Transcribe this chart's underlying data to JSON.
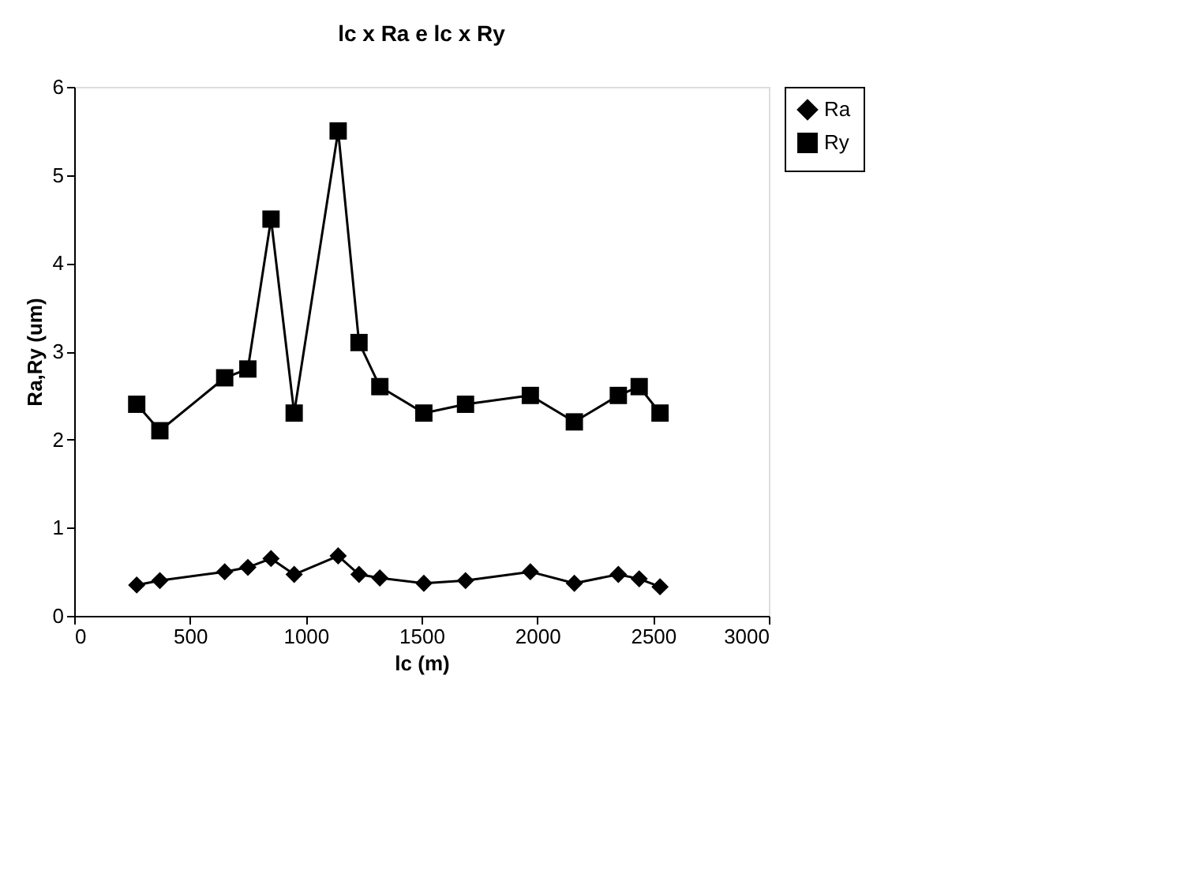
{
  "chart_data": {
    "type": "line",
    "title": "lc x Ra  e  lc x Ry",
    "xlabel": "lc (m)",
    "ylabel": "Ra,Ry (um)",
    "xlim": [
      0,
      3000
    ],
    "xticks": [
      0,
      500,
      1000,
      1500,
      2000,
      2500,
      3000
    ],
    "ylim": [
      0,
      6
    ],
    "yticks": [
      0,
      1,
      2,
      3,
      4,
      5,
      6
    ],
    "grid": false,
    "legend": "right",
    "line_style": "solid",
    "series": [
      {
        "name": "Ra",
        "color": "#000000",
        "marker": "diamond",
        "x": [
          270,
          370,
          650,
          750,
          850,
          950,
          1140,
          1230,
          1320,
          1510,
          1690,
          1970,
          2160,
          2350,
          2440,
          2530
        ],
        "values": [
          0.35,
          0.4,
          0.5,
          0.55,
          0.65,
          0.47,
          0.68,
          0.47,
          0.43,
          0.37,
          0.4,
          0.5,
          0.37,
          0.47,
          0.42,
          0.33
        ]
      },
      {
        "name": "Ry",
        "color": "#000000",
        "marker": "square",
        "x": [
          270,
          370,
          650,
          750,
          850,
          950,
          1140,
          1230,
          1320,
          1510,
          1690,
          1970,
          2160,
          2350,
          2440,
          2530
        ],
        "values": [
          2.4,
          2.1,
          2.7,
          2.8,
          4.5,
          2.3,
          5.5,
          3.1,
          2.6,
          2.3,
          2.4,
          2.5,
          2.2,
          2.5,
          2.6,
          2.3
        ]
      }
    ]
  }
}
